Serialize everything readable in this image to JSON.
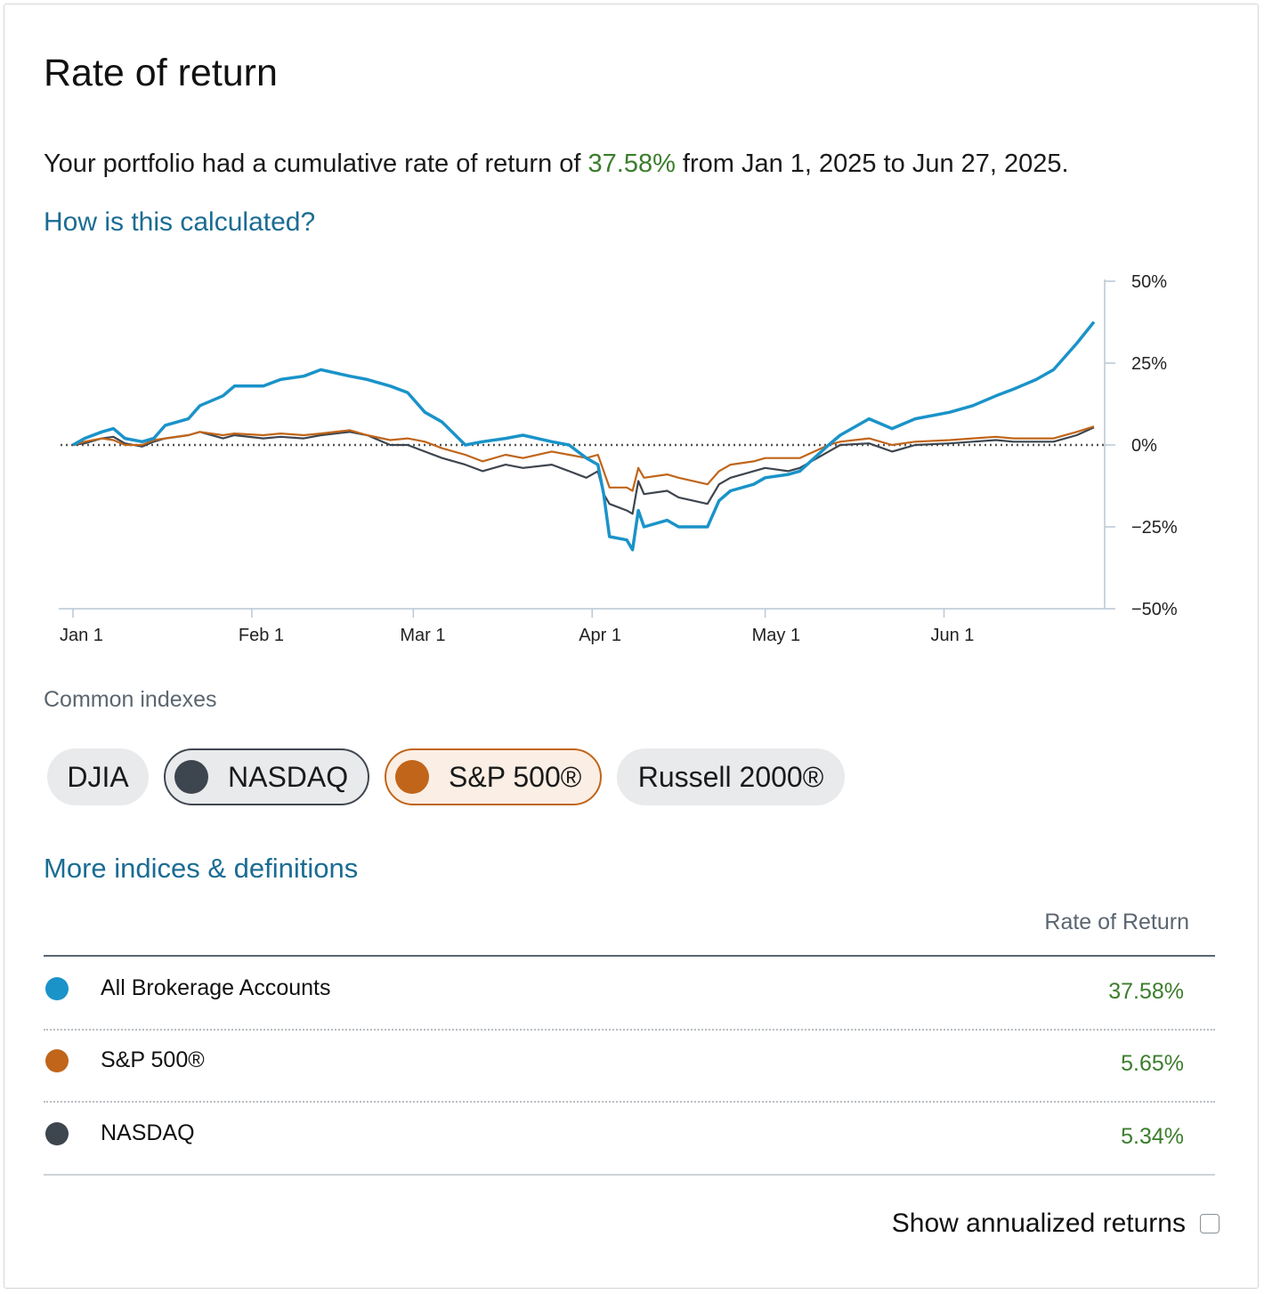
{
  "header": {
    "title": "Rate of return",
    "summary_prefix": "Your portfolio had a cumulative rate of return of ",
    "summary_pct": "37.58%",
    "summary_suffix": " from Jan 1, 2025 to Jun 27, 2025.",
    "calc_link": "How is this calculated?"
  },
  "chart_data": {
    "type": "line",
    "title": "",
    "xlabel": "",
    "ylabel": "",
    "x_range": [
      "2025-01-01",
      "2025-06-27"
    ],
    "ylim": [
      -50,
      50
    ],
    "y_ticks": [
      50,
      25,
      0,
      -25,
      -50
    ],
    "y_tick_labels": [
      "50%",
      "25%",
      "0%",
      "−25%",
      "−50%"
    ],
    "x_ticks": [
      "2025-01-01",
      "2025-02-01",
      "2025-03-01",
      "2025-04-01",
      "2025-05-01",
      "2025-06-01"
    ],
    "x_tick_labels": [
      "Jan 1",
      "Feb 1",
      "Mar 1",
      "Apr 1",
      "May 1",
      "Jun 1"
    ],
    "zero_line": "dotted",
    "grid": false,
    "series": [
      {
        "name": "NASDAQ",
        "color": "#3d454e",
        "points": [
          [
            "2025-01-01",
            0
          ],
          [
            "2025-01-03",
            0.5
          ],
          [
            "2025-01-06",
            2
          ],
          [
            "2025-01-08",
            2.5
          ],
          [
            "2025-01-10",
            0.5
          ],
          [
            "2025-01-13",
            -0.5
          ],
          [
            "2025-01-15",
            1
          ],
          [
            "2025-01-17",
            2
          ],
          [
            "2025-01-21",
            3
          ],
          [
            "2025-01-23",
            4
          ],
          [
            "2025-01-27",
            2
          ],
          [
            "2025-01-29",
            3
          ],
          [
            "2025-02-03",
            2
          ],
          [
            "2025-02-06",
            2.5
          ],
          [
            "2025-02-10",
            2
          ],
          [
            "2025-02-13",
            3
          ],
          [
            "2025-02-18",
            4
          ],
          [
            "2025-02-21",
            3
          ],
          [
            "2025-02-25",
            0
          ],
          [
            "2025-02-28",
            0
          ],
          [
            "2025-03-03",
            -2
          ],
          [
            "2025-03-06",
            -4
          ],
          [
            "2025-03-10",
            -6
          ],
          [
            "2025-03-13",
            -8
          ],
          [
            "2025-03-17",
            -6
          ],
          [
            "2025-03-20",
            -7
          ],
          [
            "2025-03-25",
            -6
          ],
          [
            "2025-03-28",
            -8
          ],
          [
            "2025-03-31",
            -10
          ],
          [
            "2025-04-02",
            -8
          ],
          [
            "2025-04-03",
            -15
          ],
          [
            "2025-04-04",
            -18
          ],
          [
            "2025-04-07",
            -20
          ],
          [
            "2025-04-08",
            -21
          ],
          [
            "2025-04-09",
            -11
          ],
          [
            "2025-04-10",
            -15
          ],
          [
            "2025-04-14",
            -14
          ],
          [
            "2025-04-16",
            -16
          ],
          [
            "2025-04-21",
            -18
          ],
          [
            "2025-04-23",
            -12
          ],
          [
            "2025-04-25",
            -10
          ],
          [
            "2025-04-29",
            -8
          ],
          [
            "2025-05-01",
            -7
          ],
          [
            "2025-05-05",
            -8
          ],
          [
            "2025-05-07",
            -7
          ],
          [
            "2025-05-12",
            -2
          ],
          [
            "2025-05-14",
            0
          ],
          [
            "2025-05-19",
            0.5
          ],
          [
            "2025-05-23",
            -2
          ],
          [
            "2025-05-27",
            0
          ],
          [
            "2025-06-02",
            0.5
          ],
          [
            "2025-06-06",
            1
          ],
          [
            "2025-06-10",
            1.5
          ],
          [
            "2025-06-13",
            1
          ],
          [
            "2025-06-17",
            1
          ],
          [
            "2025-06-20",
            1
          ],
          [
            "2025-06-24",
            3
          ],
          [
            "2025-06-27",
            5.34
          ]
        ]
      },
      {
        "name": "S&P 500®",
        "color": "#c0651a",
        "points": [
          [
            "2025-01-01",
            0
          ],
          [
            "2025-01-03",
            1
          ],
          [
            "2025-01-06",
            2
          ],
          [
            "2025-01-08",
            1.5
          ],
          [
            "2025-01-10",
            0
          ],
          [
            "2025-01-13",
            0
          ],
          [
            "2025-01-15",
            1.5
          ],
          [
            "2025-01-17",
            2
          ],
          [
            "2025-01-21",
            3
          ],
          [
            "2025-01-23",
            4
          ],
          [
            "2025-01-27",
            3
          ],
          [
            "2025-01-29",
            3.5
          ],
          [
            "2025-02-03",
            3
          ],
          [
            "2025-02-06",
            3.5
          ],
          [
            "2025-02-10",
            3
          ],
          [
            "2025-02-13",
            3.5
          ],
          [
            "2025-02-18",
            4.5
          ],
          [
            "2025-02-21",
            3
          ],
          [
            "2025-02-25",
            1.5
          ],
          [
            "2025-02-28",
            2
          ],
          [
            "2025-03-03",
            1
          ],
          [
            "2025-03-06",
            -1
          ],
          [
            "2025-03-10",
            -3
          ],
          [
            "2025-03-13",
            -5
          ],
          [
            "2025-03-17",
            -3
          ],
          [
            "2025-03-20",
            -4
          ],
          [
            "2025-03-25",
            -2
          ],
          [
            "2025-03-28",
            -3
          ],
          [
            "2025-03-31",
            -4
          ],
          [
            "2025-04-02",
            -3
          ],
          [
            "2025-04-03",
            -8
          ],
          [
            "2025-04-04",
            -13
          ],
          [
            "2025-04-07",
            -13
          ],
          [
            "2025-04-08",
            -14
          ],
          [
            "2025-04-09",
            -7
          ],
          [
            "2025-04-10",
            -10
          ],
          [
            "2025-04-14",
            -9
          ],
          [
            "2025-04-16",
            -10
          ],
          [
            "2025-04-21",
            -12
          ],
          [
            "2025-04-23",
            -8
          ],
          [
            "2025-04-25",
            -6
          ],
          [
            "2025-04-29",
            -5
          ],
          [
            "2025-05-01",
            -4
          ],
          [
            "2025-05-05",
            -4
          ],
          [
            "2025-05-07",
            -4
          ],
          [
            "2025-05-12",
            0
          ],
          [
            "2025-05-14",
            1
          ],
          [
            "2025-05-19",
            2
          ],
          [
            "2025-05-23",
            0
          ],
          [
            "2025-05-27",
            1
          ],
          [
            "2025-06-02",
            1.5
          ],
          [
            "2025-06-06",
            2
          ],
          [
            "2025-06-10",
            2.5
          ],
          [
            "2025-06-13",
            2
          ],
          [
            "2025-06-17",
            2
          ],
          [
            "2025-06-20",
            2
          ],
          [
            "2025-06-24",
            4
          ],
          [
            "2025-06-27",
            5.65
          ]
        ]
      },
      {
        "name": "All Brokerage Accounts",
        "color": "#1a93c9",
        "points": [
          [
            "2025-01-01",
            0
          ],
          [
            "2025-01-03",
            2
          ],
          [
            "2025-01-06",
            4
          ],
          [
            "2025-01-08",
            5
          ],
          [
            "2025-01-10",
            2
          ],
          [
            "2025-01-13",
            1
          ],
          [
            "2025-01-15",
            2
          ],
          [
            "2025-01-17",
            6
          ],
          [
            "2025-01-21",
            8
          ],
          [
            "2025-01-23",
            12
          ],
          [
            "2025-01-27",
            15
          ],
          [
            "2025-01-29",
            18
          ],
          [
            "2025-02-03",
            18
          ],
          [
            "2025-02-06",
            20
          ],
          [
            "2025-02-10",
            21
          ],
          [
            "2025-02-13",
            23
          ],
          [
            "2025-02-18",
            21
          ],
          [
            "2025-02-21",
            20
          ],
          [
            "2025-02-25",
            18
          ],
          [
            "2025-02-28",
            16
          ],
          [
            "2025-03-03",
            10
          ],
          [
            "2025-03-06",
            7
          ],
          [
            "2025-03-10",
            0
          ],
          [
            "2025-03-13",
            1
          ],
          [
            "2025-03-17",
            2
          ],
          [
            "2025-03-20",
            3
          ],
          [
            "2025-03-25",
            1
          ],
          [
            "2025-03-28",
            0
          ],
          [
            "2025-03-31",
            -4
          ],
          [
            "2025-04-02",
            -6
          ],
          [
            "2025-04-03",
            -15
          ],
          [
            "2025-04-04",
            -28
          ],
          [
            "2025-04-07",
            -29
          ],
          [
            "2025-04-08",
            -32
          ],
          [
            "2025-04-09",
            -20
          ],
          [
            "2025-04-10",
            -25
          ],
          [
            "2025-04-14",
            -23
          ],
          [
            "2025-04-16",
            -25
          ],
          [
            "2025-04-21",
            -25
          ],
          [
            "2025-04-23",
            -17
          ],
          [
            "2025-04-25",
            -14
          ],
          [
            "2025-04-29",
            -12
          ],
          [
            "2025-05-01",
            -10
          ],
          [
            "2025-05-05",
            -9
          ],
          [
            "2025-05-07",
            -8
          ],
          [
            "2025-05-12",
            0
          ],
          [
            "2025-05-14",
            3
          ],
          [
            "2025-05-19",
            8
          ],
          [
            "2025-05-23",
            5
          ],
          [
            "2025-05-27",
            8
          ],
          [
            "2025-06-02",
            10
          ],
          [
            "2025-06-06",
            12
          ],
          [
            "2025-06-10",
            15
          ],
          [
            "2025-06-13",
            17
          ],
          [
            "2025-06-17",
            20
          ],
          [
            "2025-06-20",
            23
          ],
          [
            "2025-06-24",
            31
          ],
          [
            "2025-06-27",
            37.58
          ]
        ]
      }
    ]
  },
  "indexes": {
    "label": "Common indexes",
    "pills": [
      {
        "label": "DJIA",
        "selected": false,
        "color": ""
      },
      {
        "label": "NASDAQ",
        "selected": true,
        "color": "#3d454e"
      },
      {
        "label": "S&P 500®",
        "selected": true,
        "color": "#c0651a"
      },
      {
        "label": "Russell 2000®",
        "selected": false,
        "color": ""
      }
    ],
    "more_link": "More indices & definitions"
  },
  "table": {
    "column_header": "Rate of Return",
    "rows": [
      {
        "name": "All Brokerage Accounts",
        "value": "37.58%",
        "color": "#1a93c9"
      },
      {
        "name": "S&P 500®",
        "value": "5.65%",
        "color": "#c0651a"
      },
      {
        "name": "NASDAQ",
        "value": "5.34%",
        "color": "#3d454e"
      }
    ]
  },
  "annualized": {
    "label": "Show annualized returns",
    "checked": false
  }
}
